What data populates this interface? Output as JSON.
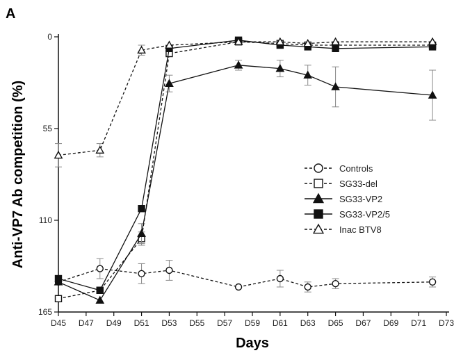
{
  "panel_label": "A",
  "chart_data": {
    "type": "line",
    "title": "",
    "xlabel": "Days",
    "ylabel": "Anti-VP7 Ab competition (%)",
    "x": [
      45,
      48,
      51,
      53,
      58,
      61,
      63,
      65,
      72
    ],
    "xticks": [
      "D45",
      "D47",
      "D49",
      "D51",
      "D53",
      "D55",
      "D57",
      "D59",
      "D61",
      "D63",
      "D65",
      "D67",
      "D69",
      "D71",
      "D73"
    ],
    "xlim": [
      45,
      73
    ],
    "yticks": [
      0,
      55,
      110,
      165
    ],
    "ylim": [
      0,
      165
    ],
    "y_inverted": true,
    "grid": false,
    "legend_position": "center-right",
    "series": [
      {
        "name": "Controls",
        "marker": "circle-open",
        "dashed": true,
        "x": [
          45,
          48,
          51,
          53,
          58,
          61,
          63,
          65,
          72
        ],
        "values": [
          147,
          139,
          142,
          140,
          150,
          145,
          150,
          148,
          147
        ],
        "errors": [
          0,
          6,
          6,
          6,
          0,
          5,
          3,
          3,
          3
        ]
      },
      {
        "name": "SG33-del",
        "marker": "square-open",
        "dashed": true,
        "x": [
          45,
          48,
          51,
          53,
          58,
          61,
          63,
          65,
          72
        ],
        "values": [
          157,
          152,
          121,
          10,
          3,
          4,
          5,
          5,
          5
        ],
        "errors": [
          0,
          0,
          4,
          0,
          0,
          0,
          0,
          0,
          0
        ]
      },
      {
        "name": "SG33-VP2",
        "marker": "triangle-filled",
        "dashed": false,
        "x": [
          45,
          48,
          51,
          53,
          58,
          61,
          63,
          65,
          72
        ],
        "values": [
          147,
          158,
          118,
          28,
          17,
          19,
          23,
          30,
          35
        ],
        "errors": [
          0,
          0,
          6,
          5,
          3,
          5,
          6,
          12,
          15
        ]
      },
      {
        "name": "SG33-VP2/5",
        "marker": "square-filled",
        "dashed": false,
        "x": [
          45,
          48,
          51,
          53,
          58,
          61,
          63,
          65,
          72
        ],
        "values": [
          145,
          152,
          103,
          7,
          2,
          5,
          6,
          7,
          6
        ],
        "errors": [
          0,
          0,
          0,
          0,
          0,
          0,
          0,
          0,
          0
        ]
      },
      {
        "name": "Inac BTV8",
        "marker": "triangle-open",
        "dashed": true,
        "x": [
          45,
          48,
          51,
          53,
          58,
          61,
          63,
          65,
          72
        ],
        "values": [
          71,
          68,
          8,
          5,
          3,
          3,
          4,
          3,
          3
        ],
        "errors": [
          7,
          4,
          3,
          0,
          0,
          0,
          0,
          0,
          0
        ]
      }
    ]
  }
}
